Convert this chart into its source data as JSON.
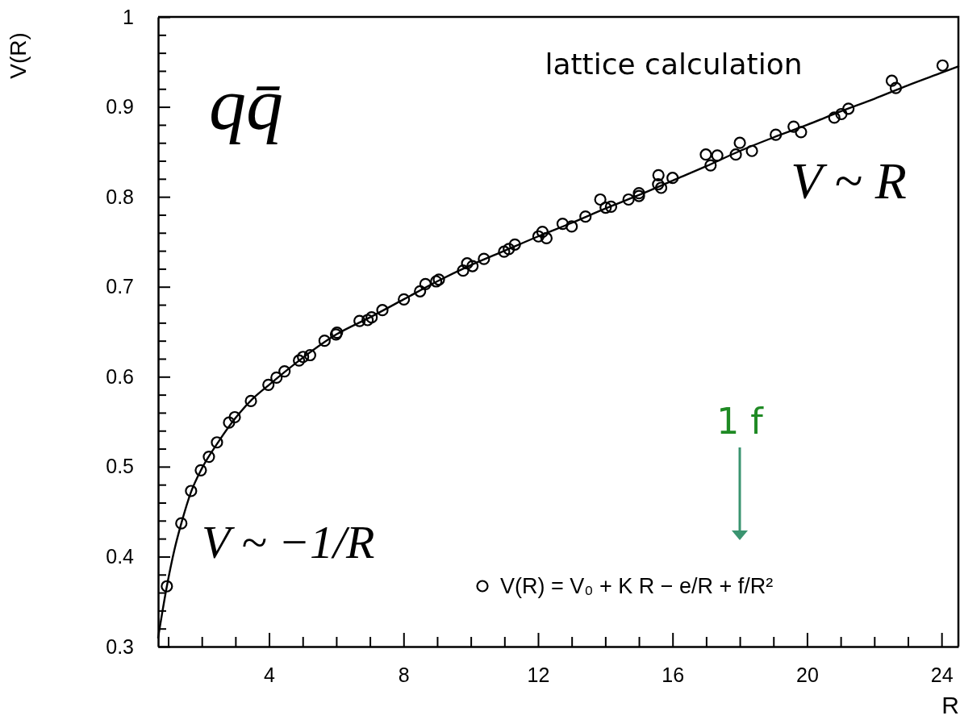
{
  "chart_data": {
    "type": "scatter",
    "xlabel": "R",
    "ylabel": "V(R)",
    "xlim": [
      0.7,
      24.5
    ],
    "ylim": [
      0.3,
      1
    ],
    "xticks": [
      {
        "value": 1,
        "label": null
      },
      {
        "value": 2,
        "label": null
      },
      {
        "value": 3,
        "label": null
      },
      4,
      {
        "value": 5,
        "label": null
      },
      {
        "value": 6,
        "label": null
      },
      {
        "value": 7,
        "label": null
      },
      8,
      {
        "value": 9,
        "label": null
      },
      {
        "value": 10,
        "label": null
      },
      {
        "value": 11,
        "label": null
      },
      12,
      {
        "value": 13,
        "label": null
      },
      {
        "value": 14,
        "label": null
      },
      {
        "value": 15,
        "label": null
      },
      16,
      {
        "value": 17,
        "label": null
      },
      {
        "value": 18,
        "label": null
      },
      {
        "value": 19,
        "label": null
      },
      20,
      {
        "value": 21,
        "label": null
      },
      {
        "value": 22,
        "label": null
      },
      {
        "value": 23,
        "label": null
      },
      24
    ],
    "yticks": [
      0.3,
      {
        "value": 0.32,
        "label": null
      },
      {
        "value": 0.34,
        "label": null
      },
      {
        "value": 0.36,
        "label": null
      },
      {
        "value": 0.38,
        "label": null
      },
      0.4,
      {
        "value": 0.42,
        "label": null
      },
      {
        "value": 0.44,
        "label": null
      },
      {
        "value": 0.46,
        "label": null
      },
      {
        "value": 0.48,
        "label": null
      },
      0.5,
      {
        "value": 0.52,
        "label": null
      },
      {
        "value": 0.54,
        "label": null
      },
      {
        "value": 0.56,
        "label": null
      },
      {
        "value": 0.58,
        "label": null
      },
      0.6,
      {
        "value": 0.62,
        "label": null
      },
      {
        "value": 0.64,
        "label": null
      },
      {
        "value": 0.66,
        "label": null
      },
      {
        "value": 0.68,
        "label": null
      },
      0.7,
      {
        "value": 0.72,
        "label": null
      },
      {
        "value": 0.74,
        "label": null
      },
      {
        "value": 0.76,
        "label": null
      },
      {
        "value": 0.78,
        "label": null
      },
      0.8,
      {
        "value": 0.82,
        "label": null
      },
      {
        "value": 0.84,
        "label": null
      },
      {
        "value": 0.86,
        "label": null
      },
      {
        "value": 0.88,
        "label": null
      },
      0.9,
      {
        "value": 0.92,
        "label": null
      },
      {
        "value": 0.94,
        "label": null
      },
      {
        "value": 0.96,
        "label": null
      },
      {
        "value": 0.98,
        "label": null
      },
      1
    ],
    "marker": "circle",
    "line_style": "solid",
    "legend": "bottom right",
    "annotations": [
      "qq̄",
      "lattice calculation",
      "V ~ R",
      "V ~ −1/R",
      "1 f"
    ],
    "series": [
      {
        "type": "line",
        "marker": "none",
        "color": "#000000",
        "x": [
          0.7,
          0.96,
          1.2,
          1.39,
          1.68,
          2,
          2.5,
          3,
          3.5,
          4,
          5,
          6,
          7,
          8,
          9,
          10,
          11,
          12,
          13,
          14,
          15,
          16,
          17,
          18,
          19,
          20,
          21,
          22,
          23,
          24,
          24.5
        ],
        "values": [
          0.31,
          0.367,
          0.41,
          0.437,
          0.472,
          0.498,
          0.528,
          0.554,
          0.575,
          0.591,
          0.621,
          0.647,
          0.666,
          0.686,
          0.706,
          0.724,
          0.74,
          0.756,
          0.771,
          0.787,
          0.802,
          0.818,
          0.834,
          0.851,
          0.866,
          0.88,
          0.895,
          0.909,
          0.924,
          0.938,
          0.945
        ]
      },
      {
        "name": "V(R) = V₀ + K R − e/R + f/R²",
        "color": "#000000",
        "x": [
          0.96,
          1.39,
          1.68,
          1.97,
          2.21,
          2.45,
          2.81,
          2.98,
          3.46,
          3.98,
          4.22,
          4.46,
          4.89,
          5.01,
          5.22,
          5.65,
          5.99,
          6.02,
          6.69,
          6.93,
          7.05,
          7.37,
          8.01,
          8.49,
          8.65,
          8.97,
          9.05,
          9.77,
          9.89,
          10.05,
          10.39,
          10.99,
          11.13,
          11.31,
          12.01,
          12.13,
          12.25,
          12.73,
          13,
          13.41,
          13.85,
          14.01,
          14.17,
          14.69,
          15,
          15,
          15.58,
          15.57,
          15.66,
          16,
          16.99,
          17.13,
          17.33,
          17.88,
          18,
          18.36,
          19.07,
          19.6,
          19.82,
          20.81,
          21.02,
          21.23,
          22.52,
          22.64,
          24.03
        ],
        "values": [
          0.367,
          0.437,
          0.473,
          0.496,
          0.511,
          0.527,
          0.549,
          0.555,
          0.573,
          0.591,
          0.599,
          0.606,
          0.618,
          0.622,
          0.624,
          0.64,
          0.647,
          0.649,
          0.662,
          0.663,
          0.666,
          0.674,
          0.686,
          0.695,
          0.703,
          0.706,
          0.708,
          0.718,
          0.726,
          0.723,
          0.731,
          0.739,
          0.742,
          0.747,
          0.756,
          0.761,
          0.754,
          0.77,
          0.767,
          0.778,
          0.797,
          0.788,
          0.789,
          0.797,
          0.804,
          0.801,
          0.824,
          0.814,
          0.81,
          0.821,
          0.847,
          0.835,
          0.846,
          0.847,
          0.86,
          0.851,
          0.869,
          0.878,
          0.872,
          0.888,
          0.892,
          0.898,
          0.929,
          0.921,
          0.946
        ]
      }
    ]
  }
}
